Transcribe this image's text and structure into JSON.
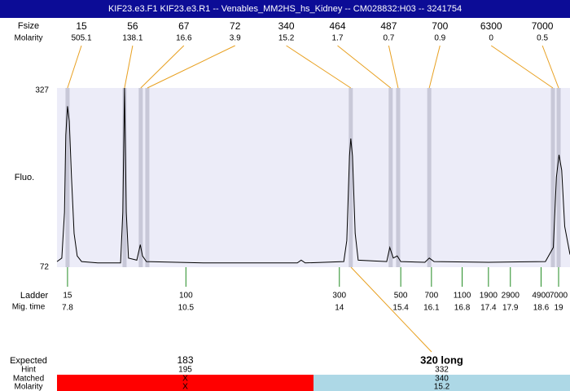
{
  "title": "KIF23.e3.F1  KIF23.e3.R1 -- Venables_MM2HS_hs_Kidney -- CM028832:H03 -- 3241754",
  "size_label": "Fsize",
  "molarity_label": "Molarity",
  "standards": [
    {
      "size": 15,
      "molarity": 505.1,
      "time": 7.8
    },
    {
      "size": 56,
      "molarity": 138.1,
      "time": 9.1
    },
    {
      "size": 67,
      "molarity": 16.6,
      "time": 9.47
    },
    {
      "size": 72,
      "molarity": 3.9,
      "time": 9.62
    },
    {
      "size": 340,
      "molarity": 15.2,
      "time": 14.26
    },
    {
      "size": 464,
      "molarity": 1.7,
      "time": 15.17
    },
    {
      "size": 487,
      "molarity": 0.7,
      "time": 15.34
    },
    {
      "size": 700,
      "molarity": 0.9,
      "time": 16.05
    },
    {
      "size": 6300,
      "molarity": 0,
      "time": 18.87
    },
    {
      "size": 7000,
      "molarity": 0.5,
      "time": 19.0
    }
  ],
  "fluo": {
    "label": "Fluo.",
    "ylim": [
      72,
      327
    ],
    "yticks": [
      72,
      327
    ],
    "xlim": [
      7.56,
      19.26
    ],
    "trace": {
      "time": [
        7.56,
        7.67,
        7.73,
        7.76,
        7.8,
        7.84,
        7.89,
        7.95,
        8.02,
        8.12,
        8.49,
        9.01,
        9.06,
        9.1,
        9.14,
        9.19,
        9.38,
        9.46,
        9.51,
        9.6,
        10.9,
        13.04,
        13.13,
        13.22,
        14.1,
        14.17,
        14.23,
        14.26,
        14.3,
        14.36,
        14.43,
        15.08,
        15.15,
        15.23,
        15.32,
        15.4,
        15.95,
        16.05,
        16.16,
        17.4,
        18.7,
        18.88,
        18.95,
        19.01,
        19.07,
        19.14,
        19.26
      ],
      "values": [
        80,
        85,
        150,
        260,
        301,
        280,
        200,
        120,
        88,
        80,
        78,
        78,
        150,
        327,
        150,
        85,
        82,
        104,
        88,
        80,
        78,
        78,
        82,
        78,
        80,
        110,
        230,
        255,
        230,
        120,
        82,
        80,
        100,
        85,
        88,
        80,
        79,
        85,
        80,
        79,
        80,
        100,
        200,
        232,
        210,
        130,
        90
      ]
    }
  },
  "ladder": {
    "label": "Ladder",
    "time_label": "Mig. time",
    "sizes": [
      15,
      100,
      300,
      500,
      700,
      1100,
      1900,
      2900,
      4900,
      7000
    ],
    "times": [
      7.8,
      10.5,
      14,
      15.4,
      16.1,
      16.8,
      17.4,
      17.9,
      18.6,
      19
    ]
  },
  "results": {
    "row_labels": [
      "Expected",
      "Hint",
      "Matched",
      "Molarity"
    ],
    "columns": [
      {
        "expected": "183",
        "hint": "195",
        "matched": "X",
        "molarity": "X",
        "color": "#ff0000"
      },
      {
        "expected": "320 long",
        "hint": "332",
        "matched": "340",
        "molarity": "15.2",
        "color": "#add8e6"
      }
    ]
  }
}
